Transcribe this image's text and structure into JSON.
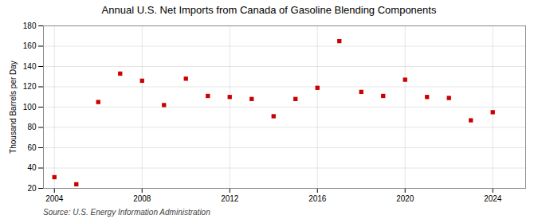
{
  "chart_data": {
    "type": "scatter",
    "title": "Annual U.S. Net Imports from Canada of Gasoline Blending Components",
    "ylabel": "Thousand Barrels per Day",
    "annotations": [
      "Source: U.S. Energy Information Administration"
    ],
    "x": [
      2004,
      2005,
      2006,
      2007,
      2008,
      2009,
      2010,
      2011,
      2012,
      2013,
      2014,
      2015,
      2016,
      2017,
      2018,
      2019,
      2020,
      2021,
      2022,
      2023,
      2024
    ],
    "values": [
      31,
      24,
      105,
      133,
      126,
      102,
      128,
      111,
      110,
      108,
      91,
      108,
      119,
      165,
      115,
      111,
      127,
      110,
      109,
      87,
      95
    ],
    "color": "#cc0000",
    "marker": "square",
    "xlim": [
      2003.5,
      2025.5
    ],
    "xticks": [
      2004,
      2008,
      2012,
      2016,
      2020,
      2024
    ],
    "ylim": [
      20,
      180
    ],
    "yticks": [
      20,
      40,
      60,
      80,
      100,
      120,
      140,
      160,
      180
    ],
    "grid": true
  }
}
